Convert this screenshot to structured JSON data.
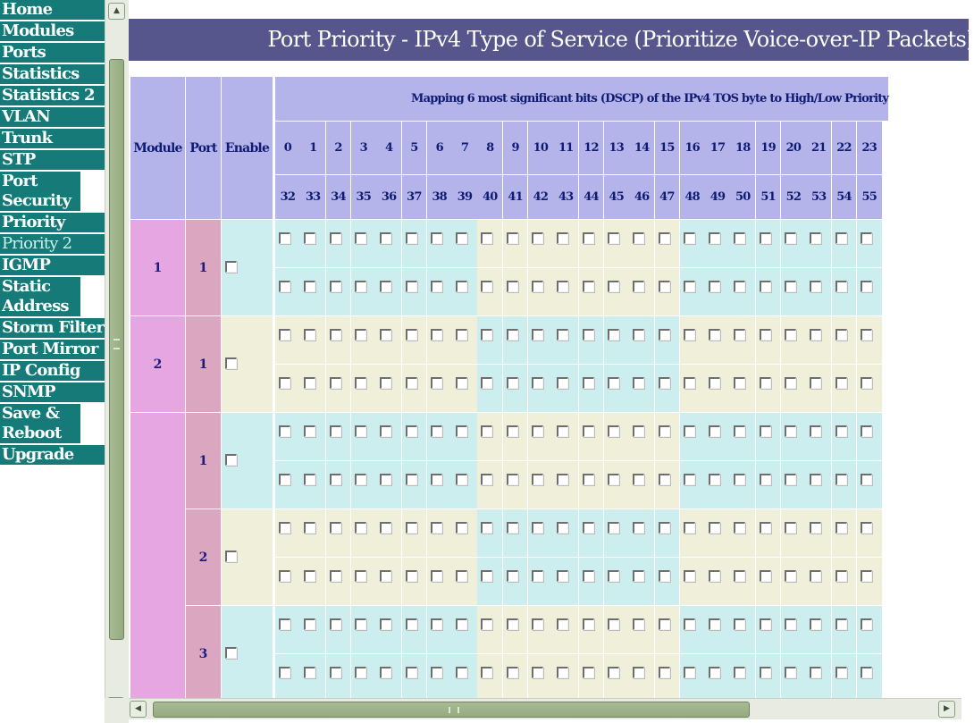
{
  "nav": {
    "items": [
      {
        "label": "Home"
      },
      {
        "label": "Modules"
      },
      {
        "label": "Ports"
      },
      {
        "label": "Statistics"
      },
      {
        "label": "Statistics 2"
      },
      {
        "label": "VLAN"
      },
      {
        "label": "Trunk"
      },
      {
        "label": "STP"
      },
      {
        "label": "Port Security"
      },
      {
        "label": "Priority"
      },
      {
        "label": "Priority 2",
        "active": true
      },
      {
        "label": "IGMP"
      },
      {
        "label": "Static Address"
      },
      {
        "label": "Storm Filter"
      },
      {
        "label": "Port Mirror"
      },
      {
        "label": "IP Config"
      },
      {
        "label": "SNMP"
      },
      {
        "label": "Save & Reboot"
      },
      {
        "label": "Upgrade"
      }
    ]
  },
  "page": {
    "title": "Port Priority - IPv4 Type of Service (Prioritize Voice-over-IP Packets)"
  },
  "table": {
    "headers": {
      "module": "Module",
      "port": "Port",
      "enable": "Enable",
      "mapping": "Mapping 6 most significant bits (DSCP) of the IPv4 TOS byte to High/Low Priority"
    },
    "dscp_row1": [
      "0",
      "1",
      "2",
      "3",
      "4",
      "5",
      "6",
      "7",
      "8",
      "9",
      "10",
      "11",
      "12",
      "13",
      "14",
      "15",
      "16",
      "17",
      "18",
      "19",
      "20",
      "21",
      "22",
      "23"
    ],
    "dscp_row2": [
      "32",
      "33",
      "34",
      "35",
      "36",
      "37",
      "38",
      "39",
      "40",
      "41",
      "42",
      "43",
      "44",
      "45",
      "46",
      "47",
      "48",
      "49",
      "50",
      "51",
      "52",
      "53",
      "54",
      "55"
    ],
    "groups": [
      {
        "module": "1",
        "ports": [
          {
            "port": "1",
            "enabled": false
          }
        ]
      },
      {
        "module": "2",
        "ports": [
          {
            "port": "1",
            "enabled": false
          }
        ]
      },
      {
        "module": "",
        "ports": [
          {
            "port": "1",
            "enabled": false
          },
          {
            "port": "2",
            "enabled": false
          },
          {
            "port": "3",
            "enabled": false
          }
        ]
      }
    ]
  },
  "colors": {
    "nav_bg": "#167a78",
    "title_bg": "#56558c",
    "header_bg": "#b4b4ea",
    "module_bg": "#e5a6e1",
    "port_bg": "#dba6c0",
    "cell_cyan": "#cdeeee",
    "cell_cream": "#f0f0da"
  },
  "scrollbars": {
    "vertical_icon_up": "scroll-up-icon",
    "vertical_icon_down": "scroll-down-icon",
    "horizontal_icon_left": "scroll-left-icon",
    "horizontal_icon_right": "scroll-right-icon"
  }
}
